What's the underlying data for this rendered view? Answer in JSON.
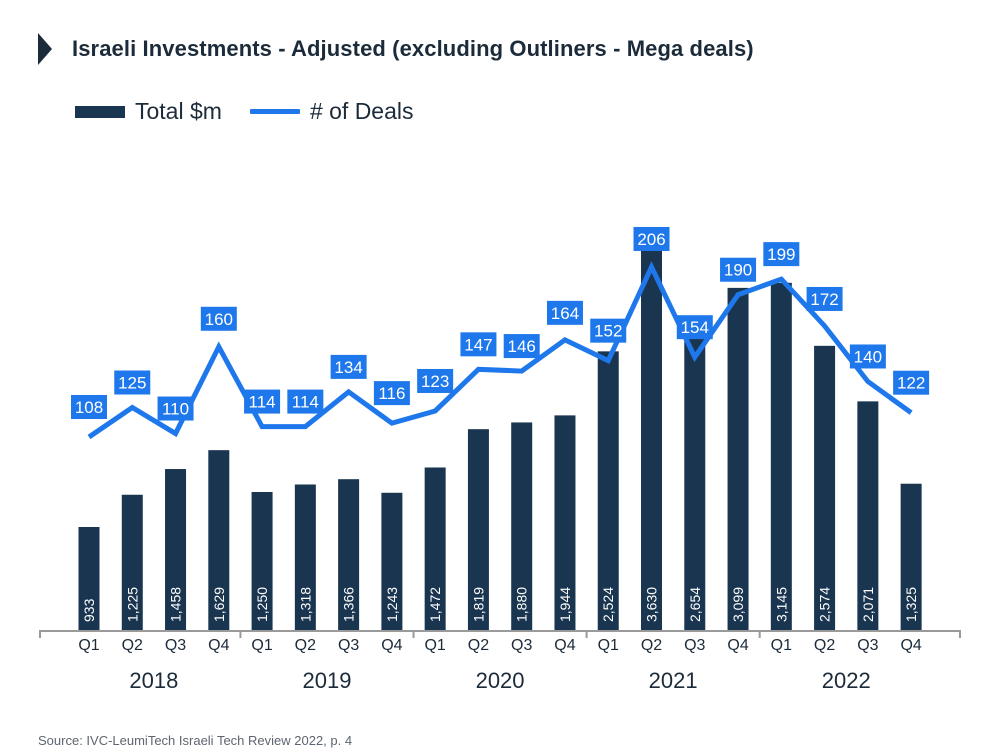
{
  "header": {
    "title": "Israeli Investments - Adjusted (excluding Outliners - Mega deals)"
  },
  "legend": [
    {
      "label": "Total $m",
      "type": "bar"
    },
    {
      "label": "# of Deals",
      "type": "line"
    }
  ],
  "colors": {
    "bar": "#1a3550",
    "line": "#1e78ec",
    "label_box": "#1e78ec",
    "axis": "#9a9a9a",
    "text": "#1c2b3a"
  },
  "source": "Source: IVC-LeumiTech Israeli Tech Review 2022, p. 4",
  "chart_data": {
    "type": "bar",
    "title": "Israeli Investments - Adjusted (excluding Outliners - Mega deals)",
    "xlabel": "",
    "ylabel": "",
    "grid": false,
    "legend_position": "top-left",
    "years": [
      "2018",
      "2019",
      "2020",
      "2021",
      "2022"
    ],
    "categories": [
      "Q1",
      "Q2",
      "Q3",
      "Q4",
      "Q1",
      "Q2",
      "Q3",
      "Q4",
      "Q1",
      "Q2",
      "Q3",
      "Q4",
      "Q1",
      "Q2",
      "Q3",
      "Q4",
      "Q1",
      "Q2",
      "Q3",
      "Q4"
    ],
    "series": [
      {
        "name": "Total $m",
        "type": "bar",
        "values": [
          933,
          1225,
          1458,
          1629,
          1250,
          1318,
          1366,
          1243,
          1472,
          1819,
          1880,
          1944,
          2524,
          3630,
          2654,
          3099,
          3145,
          2574,
          2071,
          1325
        ],
        "labels": [
          "933",
          "1,225",
          "1,458",
          "1,629",
          "1,250",
          "1,318",
          "1,366",
          "1,243",
          "1,472",
          "1,819",
          "1,880",
          "1,944",
          "2,524",
          "3,630",
          "2,654",
          "3,099",
          "3,145",
          "2,574",
          "2,071",
          "1,325"
        ]
      },
      {
        "name": "# of Deals",
        "type": "line",
        "values": [
          108,
          125,
          110,
          160,
          114,
          114,
          134,
          116,
          123,
          147,
          146,
          164,
          152,
          206,
          154,
          190,
          199,
          172,
          140,
          122
        ]
      }
    ]
  }
}
